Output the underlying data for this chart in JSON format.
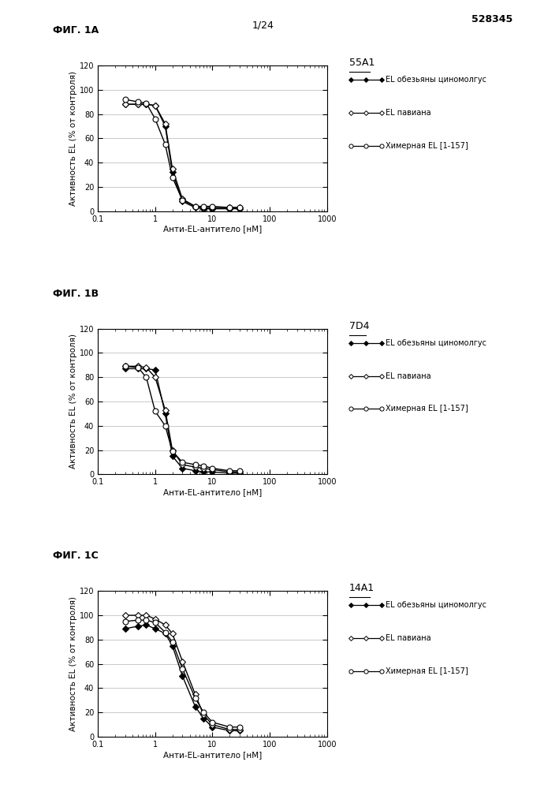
{
  "page_number": "1/24",
  "patent_number": "528345",
  "panels": [
    {
      "fig_label": "ФИГ. 1А",
      "title": "55А1",
      "xlabel": "Анти-EL-антитело [нМ]",
      "ylabel": "Активность EL (% от контроля)",
      "xlim": [
        0.1,
        1000
      ],
      "ylim": [
        0,
        120
      ],
      "yticks": [
        0,
        20,
        40,
        60,
        80,
        100,
        120
      ],
      "series": [
        {
          "label": "EL обезьяны циномолгус",
          "x": [
            0.3,
            0.5,
            0.7,
            1.0,
            1.5,
            2.0,
            3.0,
            5.0,
            7.0,
            10.0,
            20.0,
            30.0
          ],
          "y": [
            88,
            88,
            88,
            87,
            70,
            32,
            8,
            3,
            2,
            2,
            2,
            2
          ],
          "marker": "D",
          "color": "#000000",
          "markersize": 4,
          "markerfacecolor": "#000000"
        },
        {
          "label": "EL павиана",
          "x": [
            0.3,
            0.5,
            0.7,
            1.0,
            1.5,
            2.0,
            3.0,
            5.0,
            7.0,
            10.0,
            20.0,
            30.0
          ],
          "y": [
            88,
            88,
            88,
            87,
            72,
            35,
            10,
            4,
            3,
            3,
            3,
            3
          ],
          "marker": "D",
          "color": "#000000",
          "markersize": 4,
          "markerfacecolor": "#ffffff"
        },
        {
          "label": "Химерная EL [1-157]",
          "x": [
            0.3,
            0.5,
            0.7,
            1.0,
            1.5,
            2.0,
            3.0,
            5.0,
            7.0,
            10.0,
            20.0,
            30.0
          ],
          "y": [
            92,
            90,
            89,
            76,
            55,
            28,
            9,
            4,
            4,
            4,
            3,
            3
          ],
          "marker": "o",
          "color": "#000000",
          "markersize": 5,
          "markerfacecolor": "#ffffff"
        }
      ]
    },
    {
      "fig_label": "ФИГ. 1В",
      "title": "7D4",
      "xlabel": "Анти-EL-антитело [нМ]",
      "ylabel": "Активность EL (% от контроля)",
      "xlim": [
        0.1,
        1000
      ],
      "ylim": [
        0,
        120
      ],
      "yticks": [
        0,
        20,
        40,
        60,
        80,
        100,
        120
      ],
      "series": [
        {
          "label": "EL обезьяны циномолгус",
          "x": [
            0.3,
            0.5,
            0.7,
            1.0,
            1.5,
            2.0,
            3.0,
            5.0,
            7.0,
            10.0,
            20.0,
            30.0
          ],
          "y": [
            87,
            87,
            87,
            86,
            50,
            15,
            5,
            3,
            2,
            2,
            1,
            1
          ],
          "marker": "D",
          "color": "#000000",
          "markersize": 4,
          "markerfacecolor": "#000000"
        },
        {
          "label": "EL павиана",
          "x": [
            0.3,
            0.5,
            0.7,
            1.0,
            1.5,
            2.0,
            3.0,
            5.0,
            7.0,
            10.0,
            20.0,
            30.0
          ],
          "y": [
            89,
            89,
            88,
            80,
            53,
            20,
            8,
            6,
            5,
            4,
            2,
            2
          ],
          "marker": "D",
          "color": "#000000",
          "markersize": 4,
          "markerfacecolor": "#ffffff"
        },
        {
          "label": "Химерная EL [1-157]",
          "x": [
            0.3,
            0.5,
            0.7,
            1.0,
            1.5,
            2.0,
            3.0,
            5.0,
            7.0,
            10.0,
            20.0,
            30.0
          ],
          "y": [
            89,
            88,
            80,
            52,
            40,
            19,
            10,
            8,
            7,
            5,
            3,
            3
          ],
          "marker": "o",
          "color": "#000000",
          "markersize": 5,
          "markerfacecolor": "#ffffff"
        }
      ]
    },
    {
      "fig_label": "ФИГ. 1С",
      "title": "14А1",
      "xlabel": "Анти-EL-антитело [нМ]",
      "ylabel": "Активность EL (% от контроля)",
      "xlim": [
        0.1,
        1000
      ],
      "ylim": [
        0,
        120
      ],
      "yticks": [
        0,
        20,
        40,
        60,
        80,
        100,
        120
      ],
      "series": [
        {
          "label": "EL обезьяны циномолгус",
          "x": [
            0.3,
            0.5,
            0.7,
            1.0,
            1.5,
            2.0,
            3.0,
            5.0,
            7.0,
            10.0,
            20.0,
            30.0
          ],
          "y": [
            89,
            91,
            92,
            89,
            85,
            75,
            50,
            25,
            15,
            8,
            5,
            5
          ],
          "marker": "D",
          "color": "#000000",
          "markersize": 4,
          "markerfacecolor": "#000000"
        },
        {
          "label": "EL павиана",
          "x": [
            0.3,
            0.5,
            0.7,
            1.0,
            1.5,
            2.0,
            3.0,
            5.0,
            7.0,
            10.0,
            20.0,
            30.0
          ],
          "y": [
            100,
            100,
            100,
            97,
            92,
            85,
            62,
            35,
            18,
            10,
            6,
            6
          ],
          "marker": "D",
          "color": "#000000",
          "markersize": 4,
          "markerfacecolor": "#ffffff"
        },
        {
          "label": "Химерная EL [1-157]",
          "x": [
            0.3,
            0.5,
            0.7,
            1.0,
            1.5,
            2.0,
            3.0,
            5.0,
            7.0,
            10.0,
            20.0,
            30.0
          ],
          "y": [
            95,
            96,
            96,
            94,
            86,
            78,
            56,
            32,
            20,
            12,
            8,
            8
          ],
          "marker": "o",
          "color": "#000000",
          "markersize": 5,
          "markerfacecolor": "#ffffff"
        }
      ]
    }
  ],
  "background_color": "#ffffff",
  "grid_color": "#c0c0c0",
  "font_size_label": 7.5,
  "font_size_title": 9,
  "font_size_fig_label": 9,
  "font_size_tick": 7,
  "font_size_legend": 7,
  "font_size_header": 9
}
